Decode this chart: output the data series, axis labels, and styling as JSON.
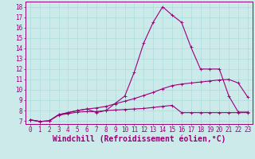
{
  "background_color": "#cceaea",
  "line_color": "#990077",
  "grid_color": "#aadddd",
  "xlabel": "Windchill (Refroidissement éolien,°C)",
  "ylim": [
    6.7,
    18.5
  ],
  "xlim": [
    -0.5,
    23.5
  ],
  "yticks": [
    7,
    8,
    9,
    10,
    11,
    12,
    13,
    14,
    15,
    16,
    17,
    18
  ],
  "xticks": [
    0,
    1,
    2,
    3,
    4,
    5,
    6,
    7,
    8,
    9,
    10,
    11,
    12,
    13,
    14,
    15,
    16,
    17,
    18,
    19,
    20,
    21,
    22,
    23
  ],
  "line1_x": [
    0,
    1,
    2,
    3,
    4,
    5,
    6,
    7,
    8,
    9,
    10,
    11,
    12,
    13,
    14,
    15,
    16,
    17,
    18,
    19,
    20,
    21,
    22,
    23
  ],
  "line1_y": [
    7.1,
    6.95,
    7.0,
    7.55,
    7.7,
    7.85,
    7.9,
    7.9,
    8.0,
    8.05,
    8.1,
    8.15,
    8.2,
    8.3,
    8.4,
    8.5,
    7.8,
    7.8,
    7.8,
    7.8,
    7.8,
    7.8,
    7.8,
    7.8
  ],
  "line2_x": [
    0,
    1,
    2,
    3,
    4,
    5,
    6,
    7,
    8,
    9,
    10,
    11,
    12,
    13,
    14,
    15,
    16,
    17,
    18,
    19,
    20,
    21,
    22,
    23
  ],
  "line2_y": [
    7.1,
    6.95,
    7.0,
    7.6,
    7.8,
    8.0,
    8.15,
    8.25,
    8.4,
    8.65,
    8.9,
    9.15,
    9.45,
    9.75,
    10.1,
    10.4,
    10.55,
    10.65,
    10.75,
    10.85,
    10.95,
    11.0,
    10.65,
    9.3
  ],
  "line3_x": [
    0,
    1,
    2,
    3,
    4,
    5,
    6,
    7,
    8,
    9,
    10,
    11,
    12,
    13,
    14,
    15,
    16,
    17,
    18,
    19,
    20,
    21,
    22,
    23
  ],
  "line3_y": [
    7.1,
    6.95,
    7.0,
    7.6,
    7.8,
    8.0,
    8.15,
    7.8,
    8.0,
    8.7,
    9.4,
    11.7,
    14.5,
    16.5,
    18.0,
    17.2,
    16.5,
    14.1,
    12.0,
    12.0,
    12.0,
    9.4,
    7.85,
    7.85
  ],
  "marker": "+",
  "marker_size": 3,
  "linewidth": 0.8,
  "xlabel_fontsize": 7,
  "tick_fontsize": 5.5
}
